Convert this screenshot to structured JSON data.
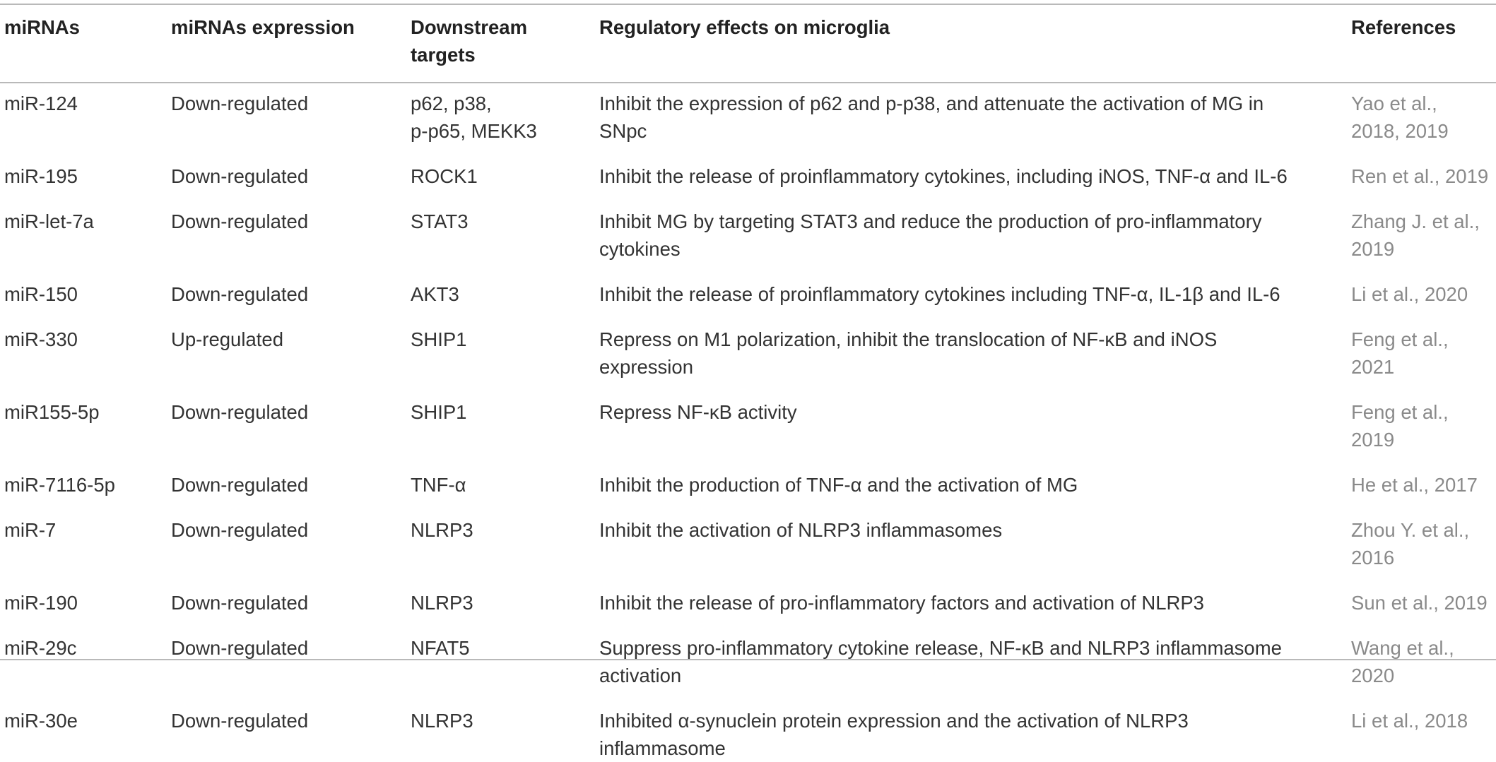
{
  "table": {
    "headers": {
      "mirnas": "miRNAs",
      "expression": "miRNAs expression",
      "targets_line1": "Downstream",
      "targets_line2": "targets",
      "effects": "Regulatory effects on microglia",
      "references": "References"
    },
    "rows": [
      {
        "mirna": "miR-124",
        "expression": "Down-regulated",
        "targets": [
          "p62, p38,",
          "p-p65, MEKK3"
        ],
        "effects": [
          "Inhibit the expression of p62 and p-p38, and attenuate the activation of MG in",
          "SNpc"
        ],
        "reference": [
          "Yao et al.,",
          "2018, 2019"
        ]
      },
      {
        "mirna": "miR-195",
        "expression": "Down-regulated",
        "targets": [
          "ROCK1"
        ],
        "effects": [
          "Inhibit the release of proinflammatory cytokines, including iNOS, TNF-α and IL-6"
        ],
        "reference": [
          "Ren et al., 2019"
        ]
      },
      {
        "mirna": "miR-let-7a",
        "expression": "Down-regulated",
        "targets": [
          "STAT3"
        ],
        "effects": [
          "Inhibit MG by targeting STAT3 and reduce the production of pro-inflammatory",
          "cytokines"
        ],
        "reference": [
          "Zhang J. et al.,",
          "2019"
        ]
      },
      {
        "mirna": "miR-150",
        "expression": "Down-regulated",
        "targets": [
          "AKT3"
        ],
        "effects": [
          "Inhibit the release of proinflammatory cytokines including TNF-α, IL-1β and IL-6"
        ],
        "reference": [
          "Li et al., 2020"
        ]
      },
      {
        "mirna": "miR-330",
        "expression": "Up-regulated",
        "targets": [
          "SHIP1"
        ],
        "effects": [
          "Repress on M1 polarization, inhibit the translocation of NF-κB and iNOS",
          "expression"
        ],
        "reference": [
          "Feng et al.,",
          "2021"
        ]
      },
      {
        "mirna": "miR155-5p",
        "expression": "Down-regulated",
        "targets": [
          "SHIP1"
        ],
        "effects": [
          "Repress NF-κB activity"
        ],
        "reference": [
          "Feng et al.,",
          "2019"
        ]
      },
      {
        "mirna": "miR-7116-5p",
        "expression": "Down-regulated",
        "targets": [
          "TNF-α"
        ],
        "effects": [
          "Inhibit the production of TNF-α and the activation of MG"
        ],
        "reference": [
          "He et al., 2017"
        ]
      },
      {
        "mirna": "miR-7",
        "expression": "Down-regulated",
        "targets": [
          "NLRP3"
        ],
        "effects": [
          "Inhibit the activation of NLRP3 inflammasomes"
        ],
        "reference": [
          "Zhou Y. et al.,",
          "2016"
        ]
      },
      {
        "mirna": "miR-190",
        "expression": "Down-regulated",
        "targets": [
          "NLRP3"
        ],
        "effects": [
          "Inhibit the release of pro-inflammatory factors and activation of NLRP3"
        ],
        "reference": [
          "Sun et al., 2019"
        ]
      },
      {
        "mirna": "miR-29c",
        "expression": "Down-regulated",
        "targets": [
          "NFAT5"
        ],
        "effects": [
          "Suppress pro-inflammatory cytokine release, NF-κB and NLRP3 inflammasome",
          "activation"
        ],
        "reference": [
          "Wang et al.,",
          "2020"
        ]
      },
      {
        "mirna": "miR-30e",
        "expression": "Down-regulated",
        "targets": [
          "NLRP3"
        ],
        "effects": [
          "Inhibited α-synuclein protein expression and the activation of NLRP3",
          "inflammasome"
        ],
        "reference": [
          "Li et al., 2018"
        ]
      }
    ]
  }
}
